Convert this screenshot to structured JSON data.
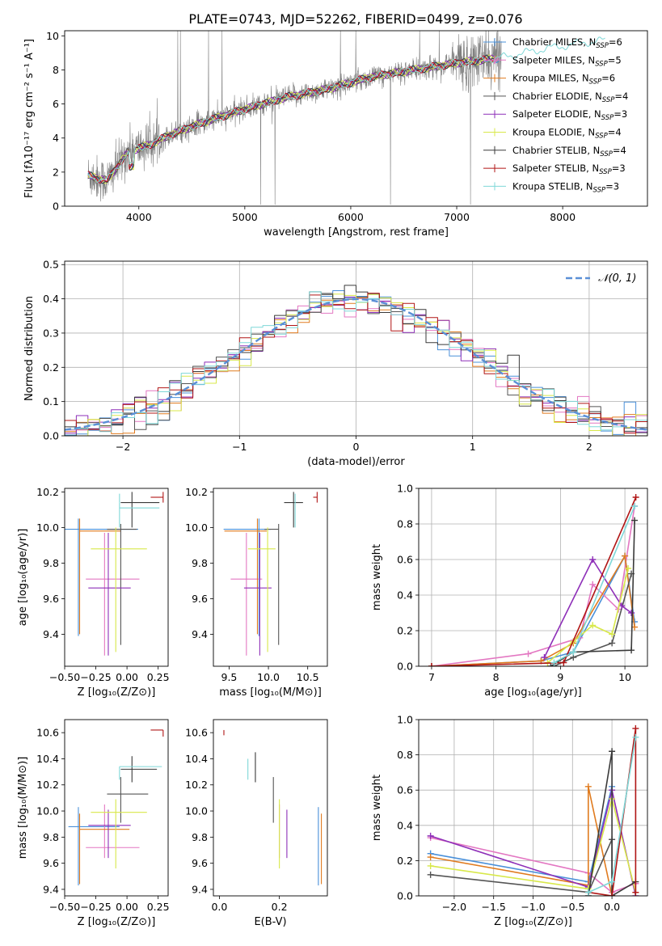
{
  "figure": {
    "title": "PLATE=0743, MJD=52262, FIBERID=0499, z=0.076"
  },
  "series_colors": {
    "Chabrier MILES": "#4a90d9",
    "Salpeter MILES": "#e377c2",
    "Kroupa MILES": "#e07b1f",
    "Chabrier ELODIE": "#555555",
    "Salpeter ELODIE": "#8e2fb8",
    "Kroupa ELODIE": "#d8e84a",
    "Chabrier STELIB": "#3a3a3a",
    "Salpeter STELIB": "#b01515",
    "Kroupa STELIB": "#7fd8d8"
  },
  "chart_data": [
    {
      "id": "spectrum",
      "type": "line",
      "title": "PLATE=0743, MJD=52262, FIBERID=0499, z=0.076",
      "xlabel": "wavelength [Angstrom, rest frame]",
      "ylabel": "Flux [fλ10⁻¹⁷ erg cm⁻² s⁻¹ A⁻¹]",
      "xlim": [
        3300,
        8800
      ],
      "ylim": [
        0,
        10.3
      ],
      "xticks": [
        4000,
        5000,
        6000,
        7000,
        8000
      ],
      "yticks": [
        0,
        2,
        4,
        6,
        8,
        10
      ],
      "grid": false,
      "legend": "top-right",
      "legend_entries": [
        "Chabrier MILES, N_SSP=6",
        "Salpeter MILES, N_SSP=5",
        "Kroupa MILES, N_SSP=6",
        "Chabrier ELODIE, N_SSP=4",
        "Salpeter ELODIE, N_SSP=3",
        "Kroupa ELODIE, N_SSP=4",
        "Chabrier STELIB, N_SSP=4",
        "Salpeter STELIB, N_SSP=3",
        "Kroupa STELIB, N_SSP=3"
      ],
      "data_trend": {
        "x": [
          3520,
          3700,
          3900,
          4100,
          4300,
          4600,
          5000,
          5400,
          5800,
          6200,
          6600,
          7000,
          7400,
          7800,
          8200,
          8500
        ],
        "y": [
          1.8,
          1.5,
          3.2,
          3.6,
          4.2,
          4.9,
          5.7,
          6.4,
          6.9,
          7.6,
          8.0,
          8.4,
          8.7,
          9.2,
          9.6,
          9.8
        ]
      }
    },
    {
      "id": "residuals",
      "type": "line",
      "xlabel": "(data-model)/error",
      "ylabel": "Normed distribution",
      "xlim": [
        -2.5,
        2.5
      ],
      "ylim": [
        0,
        0.51
      ],
      "xticks": [
        -2,
        -1,
        0,
        1,
        2
      ],
      "yticks": [
        0.0,
        0.1,
        0.2,
        0.3,
        0.4,
        0.5
      ],
      "grid": true,
      "legend": "top-right",
      "legend_entries": [
        "𝒩(0, 1)"
      ],
      "series": [
        {
          "name": "𝒩(0, 1)",
          "function": "normal",
          "mean": 0,
          "std": 1
        }
      ]
    },
    {
      "id": "age-vs-Z",
      "type": "errorbar",
      "xlabel": "Z [log₁₀(Z/Z⊙)]",
      "ylabel": "age [log₁₀(age/yr)]",
      "xlim": [
        -0.5,
        0.33
      ],
      "ylim": [
        9.22,
        10.22
      ],
      "xticks": [
        -0.5,
        -0.25,
        0.0,
        0.25
      ],
      "yticks": [
        9.4,
        9.6,
        9.8,
        10.0,
        10.2
      ],
      "points": [
        {
          "model": "Chabrier MILES",
          "x": -0.39,
          "xerr": [
            0.12,
            0.48
          ],
          "y": 9.99,
          "yerr": [
            0.6,
            0.06
          ]
        },
        {
          "model": "Salpeter MILES",
          "x": -0.18,
          "xerr": [
            0.15,
            0.28
          ],
          "y": 9.71,
          "yerr": [
            0.43,
            0.26
          ]
        },
        {
          "model": "Kroupa MILES",
          "x": -0.38,
          "xerr": [
            0.0,
            0.33
          ],
          "y": 9.98,
          "yerr": [
            0.58,
            0.07
          ]
        },
        {
          "model": "Chabrier ELODIE",
          "x": -0.05,
          "xerr": [
            0.11,
            0.13
          ],
          "y": 9.99,
          "yerr": [
            0.65,
            0.03
          ]
        },
        {
          "model": "Salpeter ELODIE",
          "x": -0.15,
          "xerr": [
            0.16,
            0.18
          ],
          "y": 9.66,
          "yerr": [
            0.38,
            0.31
          ]
        },
        {
          "model": "Kroupa ELODIE",
          "x": -0.09,
          "xerr": [
            0.2,
            0.25
          ],
          "y": 9.88,
          "yerr": [
            0.58,
            0.12
          ]
        },
        {
          "model": "Chabrier STELIB",
          "x": 0.04,
          "xerr": [
            0.09,
            0.22
          ],
          "y": 10.14,
          "yerr": [
            0.14,
            0.06
          ]
        },
        {
          "model": "Salpeter STELIB",
          "x": 0.29,
          "xerr": [
            0.1,
            0.0
          ],
          "y": 10.17,
          "yerr": [
            0.03,
            0.03
          ]
        },
        {
          "model": "Kroupa STELIB",
          "x": -0.06,
          "xerr": [
            0.0,
            0.32
          ],
          "y": 10.11,
          "yerr": [
            0.11,
            0.08
          ]
        }
      ]
    },
    {
      "id": "age-vs-mass",
      "type": "errorbar",
      "xlabel": "mass [log₁₀(M/M⊙)]",
      "ylabel": "",
      "xlim": [
        9.3,
        10.75
      ],
      "ylim": [
        9.22,
        10.22
      ],
      "xticks": [
        9.5,
        10.0,
        10.5
      ],
      "yticks": [
        9.4,
        9.6,
        9.8,
        10.0,
        10.2
      ],
      "points": [
        {
          "model": "Chabrier MILES",
          "x": 9.88,
          "xerr": [
            0.45,
            0.15
          ],
          "y": 9.99,
          "yerr": [
            0.6,
            0.06
          ]
        },
        {
          "model": "Salpeter MILES",
          "x": 9.72,
          "xerr": [
            0.2,
            0.2
          ],
          "y": 9.71,
          "yerr": [
            0.43,
            0.26
          ]
        },
        {
          "model": "Kroupa MILES",
          "x": 9.86,
          "xerr": [
            0.42,
            0.12
          ],
          "y": 9.98,
          "yerr": [
            0.58,
            0.07
          ]
        },
        {
          "model": "Chabrier ELODIE",
          "x": 10.13,
          "xerr": [
            0.18,
            0.0
          ],
          "y": 9.99,
          "yerr": [
            0.65,
            0.03
          ]
        },
        {
          "model": "Salpeter ELODIE",
          "x": 9.89,
          "xerr": [
            0.2,
            0.15
          ],
          "y": 9.66,
          "yerr": [
            0.38,
            0.31
          ]
        },
        {
          "model": "Kroupa ELODIE",
          "x": 9.99,
          "xerr": [
            0.25,
            0.1
          ],
          "y": 9.88,
          "yerr": [
            0.58,
            0.12
          ]
        },
        {
          "model": "Chabrier STELIB",
          "x": 10.32,
          "xerr": [
            0.12,
            0.12
          ],
          "y": 10.14,
          "yerr": [
            0.14,
            0.06
          ]
        },
        {
          "model": "Salpeter STELIB",
          "x": 10.62,
          "xerr": [
            0.05,
            0.0
          ],
          "y": 10.17,
          "yerr": [
            0.03,
            0.03
          ]
        },
        {
          "model": "Kroupa STELIB",
          "x": 10.34,
          "xerr": [
            0.0,
            0.0
          ],
          "y": 10.11,
          "yerr": [
            0.11,
            0.08
          ]
        }
      ]
    },
    {
      "id": "mass-weight-vs-age",
      "type": "line",
      "xlabel": "age [log₁₀(age/yr)]",
      "ylabel": "mass weight",
      "xlim": [
        6.8,
        10.35
      ],
      "ylim": [
        0,
        1.0
      ],
      "xticks": [
        7,
        8,
        9,
        10
      ],
      "yticks": [
        0.0,
        0.2,
        0.4,
        0.6,
        0.8,
        1.0
      ],
      "grid": true,
      "series": [
        {
          "name": "Chabrier MILES",
          "x": [
            7.0,
            8.7,
            9.2,
            10.0,
            10.15
          ],
          "y": [
            0.0,
            0.03,
            0.08,
            0.62,
            0.25
          ]
        },
        {
          "name": "Salpeter MILES",
          "x": [
            7.0,
            8.5,
            9.3,
            9.5,
            9.9,
            10.15
          ],
          "y": [
            0.0,
            0.07,
            0.16,
            0.46,
            0.32,
            0.9
          ]
        },
        {
          "name": "Kroupa MILES",
          "x": [
            7.0,
            8.7,
            9.2,
            10.0,
            10.15
          ],
          "y": [
            0.0,
            0.03,
            0.13,
            0.62,
            0.22
          ]
        },
        {
          "name": "Chabrier ELODIE",
          "x": [
            8.9,
            9.2,
            9.8,
            10.1
          ],
          "y": [
            0.0,
            0.05,
            0.13,
            0.52
          ]
        },
        {
          "name": "Salpeter ELODIE",
          "x": [
            8.75,
            9.5,
            9.95,
            10.1
          ],
          "y": [
            0.05,
            0.6,
            0.34,
            0.3
          ]
        },
        {
          "name": "Kroupa ELODIE",
          "x": [
            8.8,
            9.2,
            9.5,
            9.8,
            10.05
          ],
          "y": [
            0.02,
            0.14,
            0.23,
            0.18,
            0.55
          ]
        },
        {
          "name": "Chabrier STELIB",
          "x": [
            8.85,
            9.2,
            10.1,
            10.15
          ],
          "y": [
            0.0,
            0.08,
            0.09,
            0.82
          ]
        },
        {
          "name": "Salpeter STELIB",
          "x": [
            7.0,
            9.05,
            10.17
          ],
          "y": [
            0.0,
            0.02,
            0.95
          ]
        },
        {
          "name": "Kroupa STELIB",
          "x": [
            8.9,
            9.2,
            10.15
          ],
          "y": [
            0.02,
            0.08,
            0.9
          ]
        }
      ]
    },
    {
      "id": "mass-vs-Z",
      "type": "errorbar",
      "xlabel": "Z [log₁₀(Z/Z⊙)]",
      "ylabel": "mass [log₁₀(M/M⊙)]",
      "xlim": [
        -0.5,
        0.33
      ],
      "ylim": [
        9.35,
        10.7
      ],
      "xticks": [
        -0.5,
        -0.25,
        0.0,
        0.25
      ],
      "yticks": [
        9.4,
        9.6,
        9.8,
        10.0,
        10.2,
        10.4,
        10.6
      ],
      "points": [
        {
          "model": "Chabrier MILES",
          "x": -0.39,
          "xerr": [
            0.08,
            0.33
          ],
          "y": 9.88,
          "yerr": [
            0.45,
            0.15
          ]
        },
        {
          "model": "Salpeter MILES",
          "x": -0.18,
          "xerr": [
            0.15,
            0.28
          ],
          "y": 9.72,
          "yerr": [
            0.08,
            0.33
          ]
        },
        {
          "model": "Kroupa MILES",
          "x": -0.38,
          "xerr": [
            0.0,
            0.4
          ],
          "y": 9.86,
          "yerr": [
            0.42,
            0.12
          ]
        },
        {
          "model": "Chabrier ELODIE",
          "x": -0.05,
          "xerr": [
            0.11,
            0.22
          ],
          "y": 10.13,
          "yerr": [
            0.22,
            0.13
          ]
        },
        {
          "model": "Salpeter ELODIE",
          "x": -0.15,
          "xerr": [
            0.16,
            0.18
          ],
          "y": 9.89,
          "yerr": [
            0.25,
            0.12
          ]
        },
        {
          "model": "Kroupa ELODIE",
          "x": -0.09,
          "xerr": [
            0.2,
            0.25
          ],
          "y": 9.99,
          "yerr": [
            0.43,
            0.1
          ]
        },
        {
          "model": "Chabrier STELIB",
          "x": 0.04,
          "xerr": [
            0.09,
            0.2
          ],
          "y": 10.32,
          "yerr": [
            0.1,
            0.1
          ]
        },
        {
          "model": "Salpeter STELIB",
          "x": 0.29,
          "xerr": [
            0.1,
            0.0
          ],
          "y": 10.62,
          "yerr": [
            0.05,
            0.0
          ]
        },
        {
          "model": "Kroupa STELIB",
          "x": -0.06,
          "xerr": [
            0.0,
            0.34
          ],
          "y": 10.34,
          "yerr": [
            0.1,
            0.0
          ]
        }
      ]
    },
    {
      "id": "mass-vs-ebv",
      "type": "errorbar",
      "xlabel": "E(B-V)",
      "ylabel": "",
      "xlim": [
        -0.02,
        0.36
      ],
      "ylim": [
        9.35,
        10.7
      ],
      "xticks": [
        0.0,
        0.2
      ],
      "yticks": [
        9.4,
        9.6,
        9.8,
        10.0,
        10.2,
        10.4,
        10.6
      ],
      "points": [
        {
          "model": "Chabrier MILES",
          "x": 0.33,
          "y": 9.88,
          "yerr": [
            0.45,
            0.15
          ]
        },
        {
          "model": "Salpeter MILES",
          "x": 0.2,
          "y": 9.72,
          "yerr": [
            0.08,
            0.33
          ]
        },
        {
          "model": "Kroupa MILES",
          "x": 0.34,
          "y": 9.86,
          "yerr": [
            0.42,
            0.12
          ]
        },
        {
          "model": "Chabrier ELODIE",
          "x": 0.18,
          "y": 10.13,
          "yerr": [
            0.22,
            0.13
          ]
        },
        {
          "model": "Salpeter ELODIE",
          "x": 0.225,
          "y": 9.89,
          "yerr": [
            0.25,
            0.12
          ]
        },
        {
          "model": "Kroupa ELODIE",
          "x": 0.2,
          "y": 9.99,
          "yerr": [
            0.43,
            0.1
          ]
        },
        {
          "model": "Chabrier STELIB",
          "x": 0.12,
          "y": 10.32,
          "yerr": [
            0.1,
            0.13
          ]
        },
        {
          "model": "Salpeter STELIB",
          "x": 0.015,
          "y": 10.6,
          "yerr": [
            0.02,
            0.02
          ]
        },
        {
          "model": "Kroupa STELIB",
          "x": 0.095,
          "y": 10.34,
          "yerr": [
            0.1,
            0.06
          ]
        }
      ]
    },
    {
      "id": "mass-weight-vs-Z",
      "type": "line",
      "xlabel": "Z [log₁₀(Z/Z⊙)]",
      "ylabel": "mass weight",
      "xlim": [
        -2.45,
        0.45
      ],
      "ylim": [
        0,
        1.0
      ],
      "xticks": [
        -2.0,
        -1.5,
        -1.0,
        -0.5,
        0.0
      ],
      "yticks": [
        0.0,
        0.2,
        0.4,
        0.6,
        0.8,
        1.0
      ],
      "grid": true,
      "series": [
        {
          "name": "Chabrier MILES",
          "x": [
            -2.3,
            -0.3,
            0.0
          ],
          "y": [
            0.24,
            0.08,
            0.62
          ]
        },
        {
          "name": "Salpeter MILES",
          "x": [
            -2.3,
            -0.3,
            0.0,
            0.3
          ],
          "y": [
            0.33,
            0.13,
            0.02,
            0.07
          ]
        },
        {
          "name": "Kroupa MILES",
          "x": [
            -2.3,
            -0.3,
            -0.3,
            0.0
          ],
          "y": [
            0.22,
            0.06,
            0.62,
            0.0
          ]
        },
        {
          "name": "Chabrier ELODIE",
          "x": [
            -2.3,
            -0.3,
            0.0,
            0.0
          ],
          "y": [
            0.12,
            0.02,
            0.32,
            0.0
          ]
        },
        {
          "name": "Salpeter ELODIE",
          "x": [
            -2.3,
            -0.3,
            0.0,
            0.3
          ],
          "y": [
            0.34,
            0.05,
            0.6,
            0.0
          ]
        },
        {
          "name": "Kroupa ELODIE",
          "x": [
            -2.3,
            -0.3,
            0.0,
            0.3
          ],
          "y": [
            0.17,
            0.04,
            0.55,
            0.02
          ]
        },
        {
          "name": "Chabrier STELIB",
          "x": [
            -0.3,
            0.0,
            0.0,
            0.3
          ],
          "y": [
            0.0,
            0.82,
            0.0,
            0.08
          ]
        },
        {
          "name": "Salpeter STELIB",
          "x": [
            -0.3,
            0.0,
            0.3,
            0.3
          ],
          "y": [
            0.02,
            0.0,
            0.95,
            0.02
          ]
        },
        {
          "name": "Kroupa STELIB",
          "x": [
            -0.3,
            0.0,
            0.3
          ],
          "y": [
            0.02,
            0.08,
            0.9
          ]
        }
      ]
    }
  ]
}
